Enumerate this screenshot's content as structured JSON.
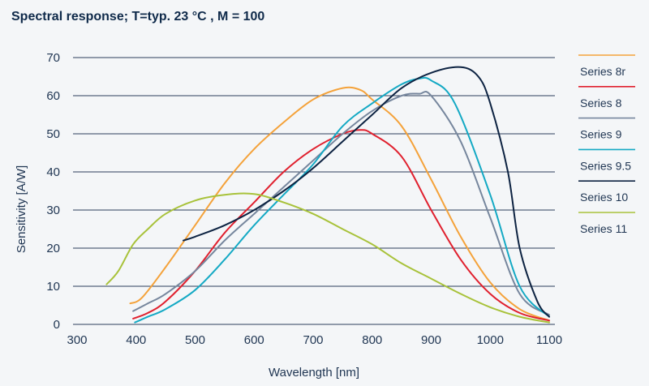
{
  "chart_data": {
    "type": "line",
    "title": "Spectral response; T=typ. 23 °C , M = 100",
    "xlabel": "Wavelength [nm]",
    "ylabel": "Sensitivity  [A/W]",
    "xlim": [
      300,
      1100
    ],
    "ylim": [
      0,
      70
    ],
    "xticks": [
      300,
      400,
      500,
      600,
      700,
      800,
      900,
      1000,
      1100
    ],
    "yticks": [
      0,
      10,
      20,
      30,
      40,
      50,
      60,
      70
    ],
    "grid": "horizontal",
    "legend_position": "right",
    "series": [
      {
        "name": "Series 8r",
        "color": "#f4a23a",
        "x": [
          390,
          410,
          450,
          500,
          550,
          600,
          650,
          700,
          750,
          780,
          800,
          850,
          900,
          950,
          1000,
          1050,
          1100
        ],
        "y": [
          5.5,
          7,
          15,
          26,
          37,
          46,
          53,
          59,
          62,
          61.5,
          59,
          52,
          38,
          23,
          11,
          4,
          1
        ]
      },
      {
        "name": "Series 8",
        "color": "#e0202e",
        "x": [
          395,
          420,
          450,
          500,
          550,
          600,
          650,
          700,
          750,
          780,
          800,
          850,
          900,
          950,
          1000,
          1050,
          1100
        ],
        "y": [
          1.5,
          3,
          6,
          14,
          24,
          32,
          40,
          46,
          50,
          51,
          50,
          44,
          30,
          17,
          8,
          3,
          1
        ]
      },
      {
        "name": "Series 9",
        "color": "#76869d",
        "x": [
          395,
          420,
          450,
          500,
          550,
          600,
          650,
          700,
          750,
          800,
          850,
          880,
          900,
          950,
          1000,
          1050,
          1100
        ],
        "y": [
          3.5,
          5.5,
          8,
          14,
          22,
          29,
          36,
          43,
          50,
          56,
          60,
          60.5,
          60,
          48,
          28,
          8,
          2.5
        ]
      },
      {
        "name": "Series 9.5",
        "color": "#14a9c4",
        "x": [
          398,
          420,
          450,
          500,
          550,
          600,
          650,
          700,
          750,
          800,
          850,
          880,
          900,
          940,
          1000,
          1050,
          1100
        ],
        "y": [
          0.5,
          2,
          4,
          9,
          17,
          26,
          34,
          42,
          52,
          58,
          63,
          64.5,
          64,
          58,
          34,
          10,
          2
        ]
      },
      {
        "name": "Series 10",
        "color": "#0d2342",
        "x": [
          480,
          500,
          550,
          600,
          650,
          700,
          750,
          800,
          850,
          900,
          950,
          980,
          1000,
          1030,
          1050,
          1080,
          1100
        ],
        "y": [
          22,
          23,
          26,
          30,
          35,
          41,
          48,
          55,
          62,
          66,
          67.5,
          65,
          58,
          40,
          20,
          6,
          2
        ]
      },
      {
        "name": "Series 11",
        "color": "#a8c23a",
        "x": [
          350,
          370,
          395,
          420,
          450,
          500,
          550,
          600,
          650,
          700,
          750,
          800,
          850,
          900,
          950,
          1000,
          1050,
          1100
        ],
        "y": [
          10.5,
          14,
          21,
          25,
          29,
          32.5,
          34,
          34.2,
          32,
          29,
          25,
          21,
          16,
          12,
          8,
          4.5,
          2,
          0.5
        ]
      }
    ]
  }
}
